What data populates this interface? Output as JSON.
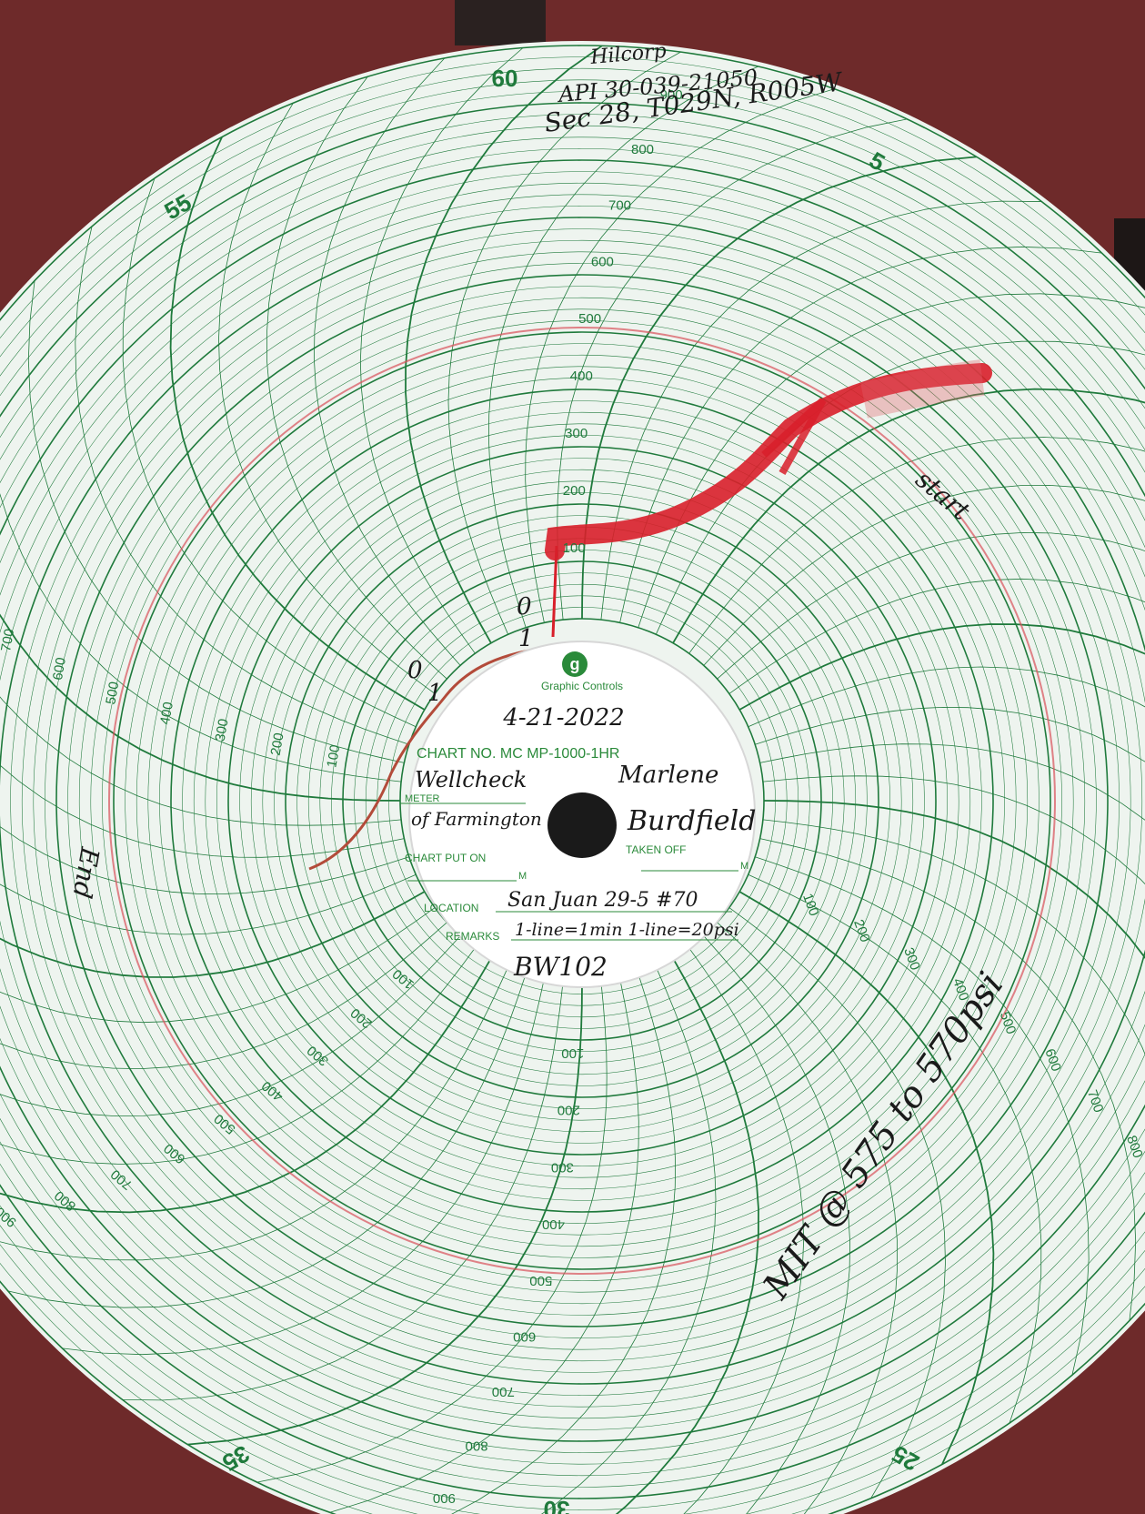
{
  "photo": {
    "background_color": "#6e2a2a",
    "paper_color": "#eef4ef",
    "grid_color": "#1f7a3c",
    "pen_color": "#d81f2a",
    "ink_color": "#1a1a1a"
  },
  "chart": {
    "minute_labels": [
      "60",
      "5",
      "25",
      "30",
      "35",
      "55"
    ],
    "pressure_labels": [
      "100",
      "200",
      "300",
      "400",
      "500",
      "600",
      "700",
      "800",
      "900"
    ]
  },
  "hub": {
    "brand_logo_letter": "g",
    "brand_name": "Graphic Controls",
    "date": "4-21-2022",
    "chart_no": "CHART NO. MC MP-1000-1HR",
    "meter_label": "METER",
    "meter_value_line1": "Wellcheck",
    "meter_value_line2": "of Farmington",
    "taken_off_label": "TAKEN OFF",
    "taken_off_name_line1": "Marlene",
    "taken_off_name_line2": "Burdfield",
    "chart_put_on_label": "CHART PUT ON",
    "m_suffix": "M",
    "location_label": "LOCATION",
    "location_value": "San Juan 29-5 #70",
    "remarks_label": "REMARKS",
    "remarks_value": "1-line=1min 1-line=20psi",
    "bw_code": "BW102"
  },
  "notes": {
    "header_line1": "Hilcorp",
    "header_line2": "API 30-039-21050",
    "header_line3": "Sec 28, T029N, R005W",
    "start_note": "start",
    "end_note": "End",
    "zero_one_a": "0",
    "zero_one_b": "1",
    "mit_note": "MIT @ 575 to 570psi"
  }
}
